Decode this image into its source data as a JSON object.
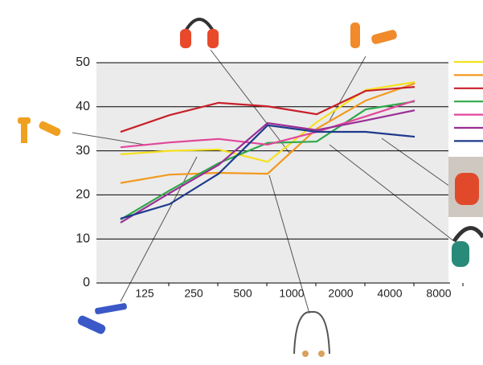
{
  "chart_data": {
    "type": "line",
    "categories": [
      "125",
      "250",
      "500",
      "1000",
      "2000",
      "4000",
      "8000"
    ],
    "series": [
      {
        "color": "#f5e11e",
        "values": [
          29.2,
          30,
          30.3,
          27.5,
          36.5,
          43.8,
          45.6
        ]
      },
      {
        "color": "#f29a1f",
        "values": [
          22.7,
          24.6,
          25,
          24.8,
          35,
          41.4,
          45.3
        ]
      },
      {
        "color": "#c8202a",
        "values": [
          34.3,
          38.1,
          40.9,
          40.1,
          38.3,
          43.6,
          44.5
        ]
      },
      {
        "color": "#2fa84a",
        "values": [
          14.4,
          21,
          27.2,
          31.8,
          32.1,
          39.4,
          41.2
        ]
      },
      {
        "color": "#e2469a",
        "values": [
          30.8,
          31.9,
          32.7,
          31.4,
          34.3,
          37.8,
          41.4
        ]
      },
      {
        "color": "#9a2e96",
        "values": [
          13.7,
          20.4,
          26.8,
          36.3,
          34.7,
          36.9,
          39.2
        ]
      },
      {
        "color": "#1e3a8c",
        "values": [
          14.6,
          17.9,
          24.8,
          35.8,
          34.3,
          34.3,
          33.2
        ]
      }
    ],
    "ylim": [
      0,
      50
    ],
    "yticks": [
      0,
      10,
      20,
      30,
      40,
      50
    ],
    "grid": true,
    "legend": "right"
  }
}
